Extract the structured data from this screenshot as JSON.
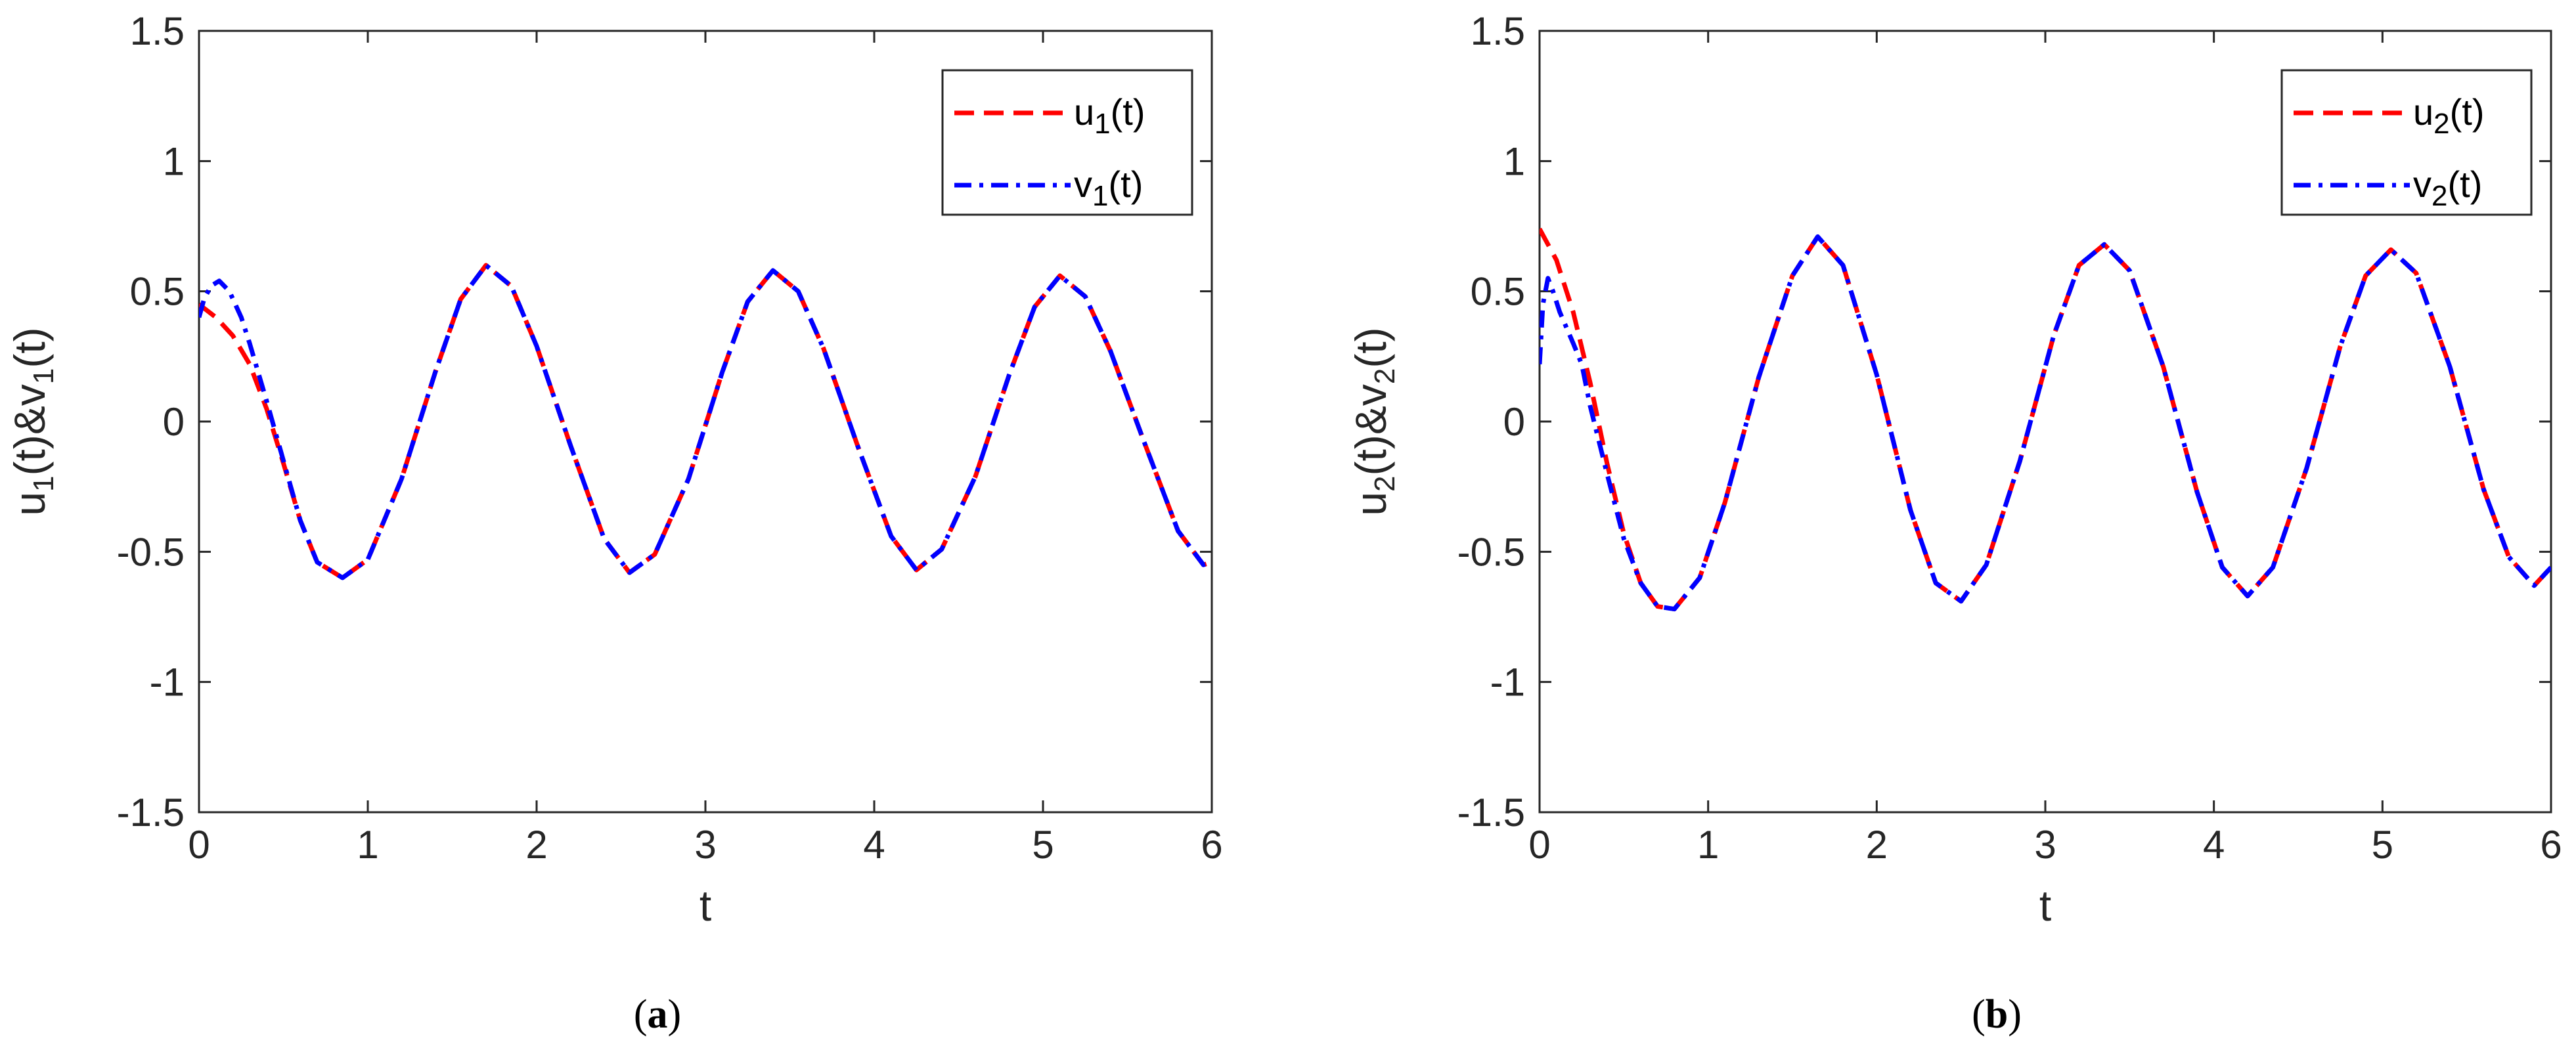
{
  "chart_data": [
    {
      "type": "line",
      "caption": {
        "open": "(",
        "letter": "a",
        "close": ")"
      },
      "xlabel": "t",
      "ylabel": {
        "parts": [
          [
            "u",
            ""
          ],
          [
            "1",
            "sub"
          ],
          [
            "(t)&v",
            ""
          ],
          [
            "1",
            "sub"
          ],
          [
            "(t)",
            ""
          ]
        ]
      },
      "xlim": [
        0,
        6
      ],
      "ylim": [
        -1.5,
        1.5
      ],
      "xticks": [
        "0",
        "1",
        "2",
        "3",
        "4",
        "5",
        "6"
      ],
      "yticks": [
        "-1.5",
        "-1",
        "-0.5",
        "0",
        "0.5",
        "1",
        "1.5"
      ],
      "legend_position": "top-right",
      "series": [
        {
          "name": "u_1(t)",
          "label": {
            "base": "u",
            "sub": "1",
            "suffix": "(t)"
          },
          "color": "#FF0000",
          "style": "dashed",
          "x": [
            0,
            0.1,
            0.2,
            0.3,
            0.4,
            0.5,
            0.6,
            0.7,
            0.85,
            1.0,
            1.2,
            1.4,
            1.55,
            1.7,
            1.85,
            2.0,
            2.2,
            2.4,
            2.55,
            2.7,
            2.9,
            3.1,
            3.25,
            3.4,
            3.55,
            3.7,
            3.9,
            4.1,
            4.25,
            4.4,
            4.6,
            4.8,
            4.95,
            5.1,
            5.25,
            5.4,
            5.6,
            5.8,
            5.95,
            6.0
          ],
          "y": [
            0.45,
            0.4,
            0.33,
            0.22,
            0.05,
            -0.16,
            -0.38,
            -0.54,
            -0.6,
            -0.53,
            -0.22,
            0.19,
            0.47,
            0.6,
            0.52,
            0.29,
            -0.09,
            -0.45,
            -0.58,
            -0.51,
            -0.22,
            0.19,
            0.46,
            0.58,
            0.5,
            0.28,
            -0.09,
            -0.44,
            -0.57,
            -0.49,
            -0.21,
            0.18,
            0.44,
            0.56,
            0.48,
            0.27,
            -0.08,
            -0.42,
            -0.55,
            -0.54
          ]
        },
        {
          "name": "v_1(t)",
          "label": {
            "base": "v",
            "sub": "1",
            "suffix": "(t)"
          },
          "color": "#0000FF",
          "style": "dashdot",
          "x": [
            0,
            0.03,
            0.07,
            0.12,
            0.18,
            0.25,
            0.3,
            0.4,
            0.5,
            0.6,
            0.7,
            0.85,
            1.0,
            1.2,
            1.4,
            1.55,
            1.7,
            1.85,
            2.0,
            2.2,
            2.4,
            2.55,
            2.7,
            2.9,
            3.1,
            3.25,
            3.4,
            3.55,
            3.7,
            3.9,
            4.1,
            4.25,
            4.4,
            4.6,
            4.8,
            4.95,
            5.1,
            5.25,
            5.4,
            5.6,
            5.8,
            5.95,
            6.0
          ],
          "y": [
            0.4,
            0.47,
            0.52,
            0.54,
            0.5,
            0.4,
            0.3,
            0.08,
            -0.15,
            -0.38,
            -0.54,
            -0.6,
            -0.53,
            -0.22,
            0.19,
            0.47,
            0.6,
            0.52,
            0.29,
            -0.09,
            -0.45,
            -0.58,
            -0.51,
            -0.22,
            0.19,
            0.46,
            0.58,
            0.5,
            0.28,
            -0.09,
            -0.44,
            -0.57,
            -0.49,
            -0.21,
            0.18,
            0.44,
            0.56,
            0.48,
            0.27,
            -0.08,
            -0.42,
            -0.55,
            -0.54
          ]
        }
      ]
    },
    {
      "type": "line",
      "caption": {
        "open": "(",
        "letter": "b",
        "close": ")"
      },
      "xlabel": "t",
      "ylabel": {
        "parts": [
          [
            "u",
            ""
          ],
          [
            "2",
            "sub"
          ],
          [
            "(t)&v",
            ""
          ],
          [
            "2",
            "sub"
          ],
          [
            "(t)",
            ""
          ]
        ]
      },
      "xlim": [
        0,
        6
      ],
      "ylim": [
        -1.5,
        1.5
      ],
      "xticks": [
        "0",
        "1",
        "2",
        "3",
        "4",
        "5",
        "6"
      ],
      "yticks": [
        "-1.5",
        "-1",
        "-0.5",
        "0",
        "0.5",
        "1",
        "1.5"
      ],
      "legend_position": "top-right",
      "series": [
        {
          "name": "u_2(t)",
          "label": {
            "base": "u",
            "sub": "2",
            "suffix": "(t)"
          },
          "color": "#FF0000",
          "style": "dashed",
          "x": [
            0,
            0.1,
            0.2,
            0.3,
            0.4,
            0.5,
            0.6,
            0.7,
            0.8,
            0.95,
            1.1,
            1.3,
            1.5,
            1.65,
            1.8,
            2.0,
            2.2,
            2.35,
            2.5,
            2.65,
            2.85,
            3.05,
            3.2,
            3.35,
            3.5,
            3.7,
            3.9,
            4.05,
            4.2,
            4.35,
            4.55,
            4.75,
            4.9,
            5.05,
            5.2,
            5.4,
            5.6,
            5.75,
            5.9,
            6.0
          ],
          "y": [
            0.74,
            0.62,
            0.42,
            0.15,
            -0.16,
            -0.43,
            -0.62,
            -0.71,
            -0.72,
            -0.6,
            -0.31,
            0.17,
            0.56,
            0.71,
            0.6,
            0.18,
            -0.34,
            -0.62,
            -0.69,
            -0.55,
            -0.15,
            0.33,
            0.6,
            0.68,
            0.58,
            0.21,
            -0.27,
            -0.56,
            -0.67,
            -0.56,
            -0.18,
            0.29,
            0.56,
            0.66,
            0.57,
            0.21,
            -0.26,
            -0.52,
            -0.63,
            -0.56
          ]
        },
        {
          "name": "v_2(t)",
          "label": {
            "base": "v",
            "sub": "2",
            "suffix": "(t)"
          },
          "color": "#0000FF",
          "style": "dashdot",
          "x": [
            0,
            0.02,
            0.05,
            0.08,
            0.12,
            0.16,
            0.2,
            0.25,
            0.3,
            0.4,
            0.5,
            0.6,
            0.7,
            0.8,
            0.95,
            1.1,
            1.3,
            1.5,
            1.65,
            1.8,
            2.0,
            2.2,
            2.35,
            2.5,
            2.65,
            2.85,
            3.05,
            3.2,
            3.35,
            3.5,
            3.7,
            3.9,
            4.05,
            4.2,
            4.35,
            4.55,
            4.75,
            4.9,
            5.05,
            5.2,
            5.4,
            5.6,
            5.75,
            5.9,
            6.0
          ],
          "y": [
            0.22,
            0.45,
            0.55,
            0.5,
            0.42,
            0.36,
            0.3,
            0.22,
            0.06,
            -0.2,
            -0.45,
            -0.62,
            -0.71,
            -0.72,
            -0.6,
            -0.31,
            0.17,
            0.56,
            0.71,
            0.6,
            0.18,
            -0.34,
            -0.62,
            -0.69,
            -0.55,
            -0.15,
            0.33,
            0.6,
            0.68,
            0.58,
            0.21,
            -0.27,
            -0.56,
            -0.67,
            -0.56,
            -0.18,
            0.29,
            0.56,
            0.66,
            0.57,
            0.21,
            -0.26,
            -0.52,
            -0.63,
            -0.56
          ]
        }
      ]
    }
  ]
}
